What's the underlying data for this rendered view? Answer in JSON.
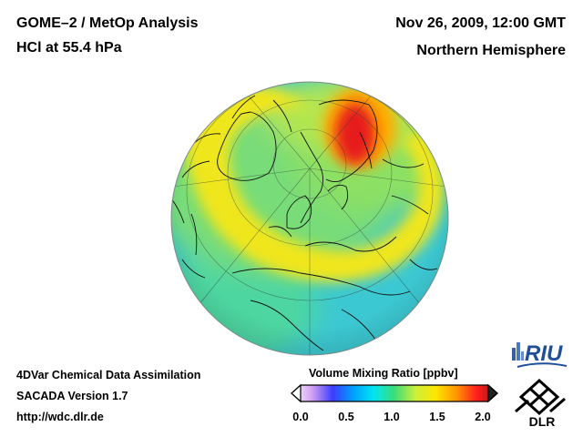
{
  "header": {
    "title_line1": "GOME–2 / MetOp Analysis",
    "title_line2": "HCl at 55.4 hPa",
    "datetime": "Nov 26, 2009, 12:00 GMT",
    "region": "Northern Hemisphere"
  },
  "footer": {
    "line1": "4DVar Chemical Data Assimilation",
    "line2": "SACADA Version 1.7",
    "url": "http://wdc.dlr.de"
  },
  "colorbar": {
    "label": "Volume Mixing Ratio [ppbv]",
    "ticks": [
      "0.0",
      "0.5",
      "1.0",
      "1.5",
      "2.0"
    ],
    "range": [
      0.0,
      2.0
    ],
    "stops": [
      "#ffffff",
      "#d2a0f0",
      "#3c3cff",
      "#00a0ff",
      "#00e6f0",
      "#3cdc78",
      "#c8f03c",
      "#ffe600",
      "#ff9600",
      "#ff1e1e",
      "#a01414"
    ]
  },
  "logos": {
    "riu": "RIU",
    "dlr": "DLR"
  },
  "map": {
    "projection": "orthographic",
    "hemisphere": "Northern Hemisphere",
    "ocean_color": "#3cc8d2",
    "high_color": "#e61e1e",
    "mid_color": "#f0e61e",
    "low_color": "#78dc78"
  }
}
